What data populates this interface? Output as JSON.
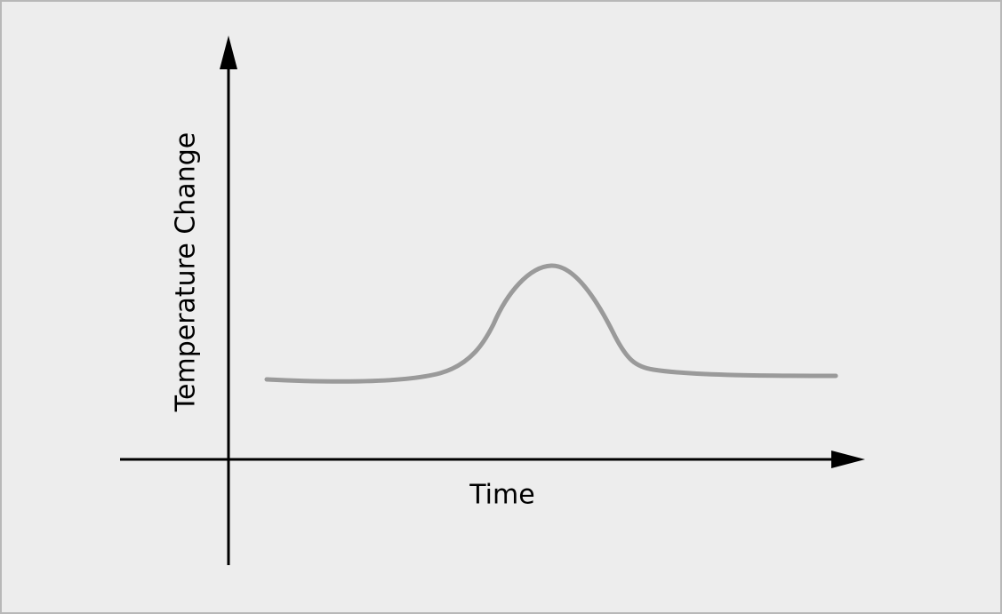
{
  "x_axis": {
    "label": "Time"
  },
  "y_axis": {
    "label": "Temperature Change"
  }
}
